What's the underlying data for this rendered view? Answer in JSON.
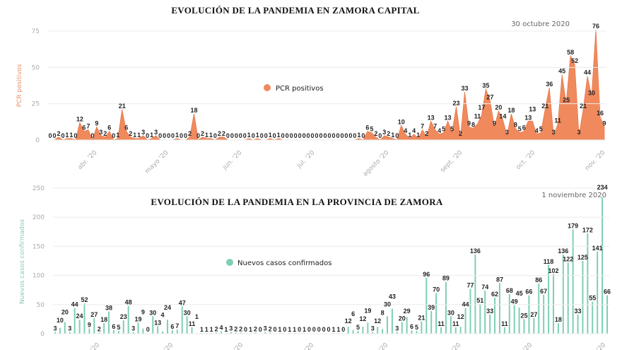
{
  "chart_data": [
    {
      "type": "area",
      "title": "EVOLUCIÓN DE LA PANDEMIA EN ZAMORA CAPITAL",
      "ylabel": "PCR positivos",
      "ylim": [
        0,
        80
      ],
      "yticks": [
        "0",
        "25",
        "50",
        "75"
      ],
      "ytick_values": [
        0,
        25,
        50,
        75
      ],
      "xticks": [
        "abr. '20",
        "mayo '20",
        "jun. '20",
        "jul. '20",
        "agosto '20",
        "sept. '20",
        "oct. '20",
        "nov. '20"
      ],
      "legend": "PCR positivos",
      "annotation": "30 octubre 2020",
      "color": "#f08a5d",
      "values": [
        0,
        0,
        2,
        0,
        1,
        1,
        0,
        12,
        6,
        7,
        0,
        9,
        3,
        2,
        6,
        0,
        1,
        21,
        6,
        2,
        1,
        1,
        3,
        0,
        1,
        3,
        0,
        0,
        0,
        0,
        1,
        0,
        0,
        2,
        18,
        0,
        2,
        1,
        1,
        0,
        2,
        2,
        0,
        0,
        0,
        0,
        0,
        1,
        0,
        1,
        0,
        0,
        1,
        0,
        1,
        0,
        0,
        0,
        0,
        0,
        0,
        0,
        0,
        0,
        0,
        0,
        0,
        0,
        0,
        0,
        0,
        0,
        0,
        1,
        0,
        6,
        5,
        2,
        0,
        3,
        2,
        1,
        0,
        10,
        4,
        1,
        4,
        1,
        7,
        2,
        13,
        7,
        4,
        5,
        13,
        5,
        23,
        2,
        33,
        9,
        8,
        11,
        17,
        35,
        27,
        9,
        20,
        14,
        3,
        18,
        8,
        5,
        6,
        13,
        13,
        4,
        5,
        21,
        36,
        3,
        11,
        45,
        25,
        58,
        52,
        3,
        21,
        44,
        30,
        76,
        16,
        9
      ]
    },
    {
      "type": "bar",
      "title": "EVOLUCIÓN DE LA PANDEMIA EN LA PROVINCIA DE ZAMORA",
      "ylabel": "Nuevos casos confirmados",
      "ylim": [
        0,
        250
      ],
      "yticks": [
        "0",
        "50",
        "100",
        "150",
        "200",
        "250"
      ],
      "ytick_values": [
        0,
        50,
        100,
        150,
        200,
        250
      ],
      "xticks": [
        "'20",
        "'20",
        "'20",
        "'20",
        "'20",
        "'20",
        "'20",
        "'20"
      ],
      "legend": "Nuevos casos confirmados",
      "annotation": "1 noviembre 2020",
      "color": "#7fcfb3",
      "values": [
        3,
        10,
        20,
        3,
        44,
        24,
        52,
        9,
        27,
        2,
        18,
        38,
        6,
        5,
        23,
        48,
        3,
        19,
        9,
        0,
        30,
        13,
        4,
        24,
        6,
        7,
        47,
        30,
        11,
        1,
        1,
        1,
        1,
        2,
        4,
        1,
        3,
        2,
        2,
        0,
        1,
        2,
        0,
        3,
        2,
        0,
        1,
        0,
        1,
        1,
        0,
        1,
        0,
        0,
        0,
        0,
        0,
        1,
        1,
        0,
        12,
        6,
        5,
        12,
        19,
        3,
        12,
        8,
        30,
        43,
        3,
        20,
        29,
        6,
        5,
        21,
        96,
        39,
        70,
        11,
        89,
        30,
        11,
        12,
        44,
        77,
        136,
        51,
        74,
        33,
        62,
        87,
        11,
        68,
        49,
        45,
        25,
        66,
        27,
        86,
        67,
        118,
        102,
        18,
        136,
        122,
        179,
        33,
        125,
        172,
        55,
        141,
        234,
        66
      ]
    }
  ]
}
